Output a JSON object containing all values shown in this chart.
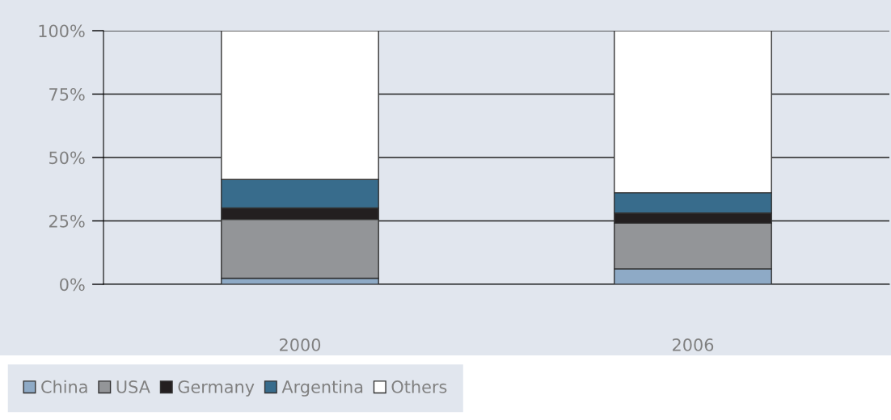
{
  "chart_data": {
    "type": "bar",
    "stacked": true,
    "categories": [
      "2000",
      "2006"
    ],
    "series": [
      {
        "name": "China",
        "color": "#8eaac6",
        "values": [
          2.4,
          6.1
        ]
      },
      {
        "name": "USA",
        "color": "#939598",
        "values": [
          23.2,
          18.0
        ]
      },
      {
        "name": "Germany",
        "color": "#231f20",
        "values": [
          4.5,
          4.0
        ]
      },
      {
        "name": "Argentina",
        "color": "#386c8c",
        "values": [
          11.2,
          8.0
        ]
      },
      {
        "name": "Others",
        "color": "#ffffff",
        "values": [
          58.7,
          63.9
        ]
      }
    ],
    "ylim": [
      0,
      100
    ],
    "yticks": [
      {
        "value": 0,
        "label": "0%"
      },
      {
        "value": 25,
        "label": "25%"
      },
      {
        "value": 50,
        "label": "50%"
      },
      {
        "value": 75,
        "label": "75%"
      },
      {
        "value": 100,
        "label": "100%"
      }
    ],
    "grid": "y",
    "legend": "bottom left"
  }
}
